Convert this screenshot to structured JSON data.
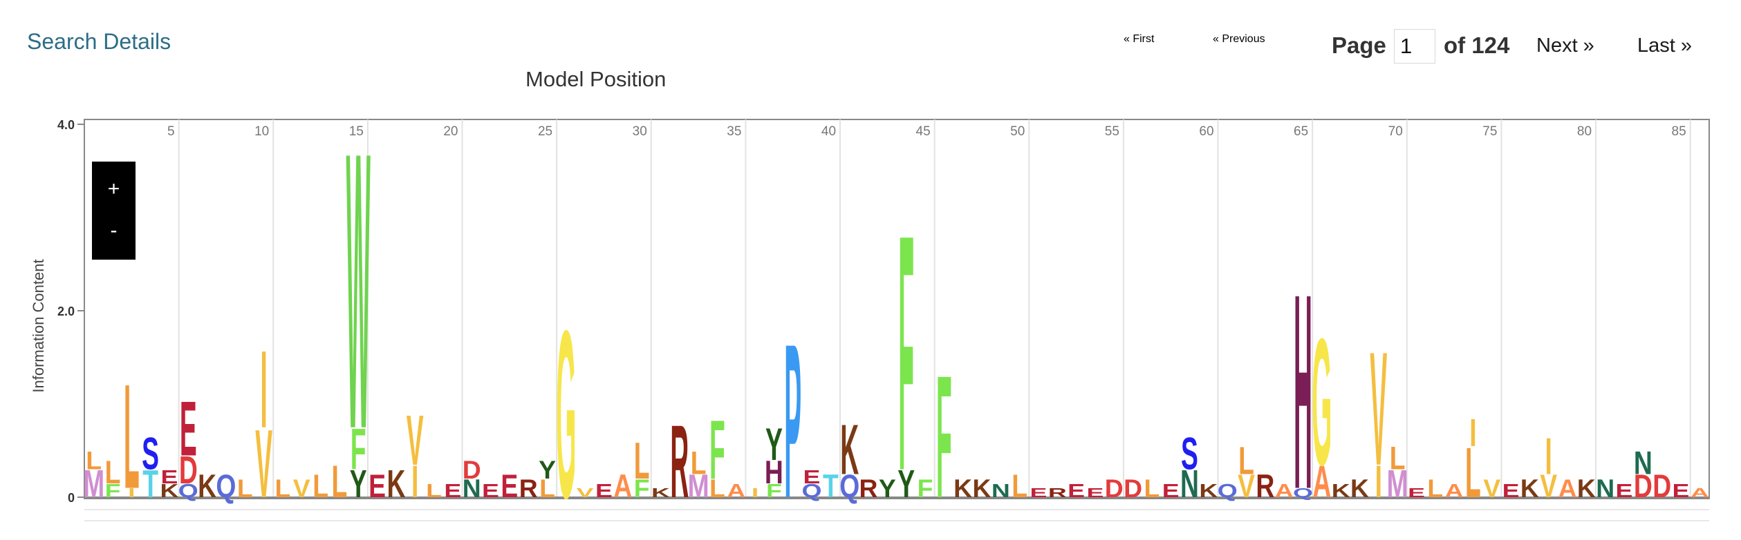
{
  "header": {
    "search_details": "Search Details",
    "pager": {
      "first": "« First",
      "previous": "« Previous",
      "page_label": "Page",
      "page_value": "1",
      "of_label": "of 124",
      "next": "Next »",
      "last": "Last »"
    }
  },
  "zoom": {
    "plus": "+",
    "minus": "-"
  },
  "colors": {
    "axis": "#888888",
    "grid": "#e2e2e2",
    "link": "#2c6d86"
  },
  "chart_data": {
    "type": "bar",
    "title": "Model Position",
    "ylabel": "Information Content",
    "ylim": [
      0,
      4
    ],
    "yticks": [
      "0",
      "2.0",
      "4.0"
    ],
    "xlim": [
      1,
      86
    ],
    "xticks": [
      5,
      10,
      15,
      20,
      25,
      30,
      35,
      40,
      45,
      50,
      55,
      60,
      65,
      70,
      75,
      80,
      85
    ],
    "letter_colors": {
      "A": "#ff8c4a",
      "C": "#f5a7c5",
      "D": "#e33b3b",
      "E": "#c1203a",
      "F": "#7ce54d",
      "G": "#f7e64a",
      "H": "#7a1e55",
      "I": "#f3be3f",
      "K": "#7a3a15",
      "L": "#f19a3a",
      "M": "#d08ed1",
      "N": "#1e6b50",
      "P": "#3a99f2",
      "Q": "#5a6bd8",
      "R": "#8b2212",
      "S": "#1f1ff1",
      "T": "#58d3e8",
      "V": "#f4be3e",
      "W": "#6fd34f",
      "Y": "#1f5a16"
    },
    "columns": [
      {
        "x": 1,
        "stack": [
          [
            "M",
            0.3
          ],
          [
            "L",
            0.2
          ]
        ]
      },
      {
        "x": 2,
        "stack": [
          [
            "F",
            0.15
          ],
          [
            "L",
            0.25
          ]
        ]
      },
      {
        "x": 3,
        "stack": [
          [
            "I",
            0.1
          ],
          [
            "L",
            1.15
          ]
        ]
      },
      {
        "x": 4,
        "stack": [
          [
            "T",
            0.3
          ],
          [
            "S",
            0.35
          ]
        ]
      },
      {
        "x": 5,
        "stack": [
          [
            "K",
            0.15
          ],
          [
            "E",
            0.15
          ]
        ]
      },
      {
        "x": 6,
        "stack": [
          [
            "Q",
            0.15
          ],
          [
            "D",
            0.3
          ],
          [
            "E",
            0.6
          ]
        ]
      },
      {
        "x": 7,
        "stack": [
          [
            "K",
            0.25
          ]
        ]
      },
      {
        "x": 8,
        "stack": [
          [
            "Q",
            0.25
          ]
        ]
      },
      {
        "x": 9,
        "stack": [
          [
            "L",
            0.2
          ]
        ]
      },
      {
        "x": 10,
        "stack": [
          [
            "V",
            0.75
          ],
          [
            "I",
            0.85
          ]
        ]
      },
      {
        "x": 11,
        "stack": [
          [
            "L",
            0.2
          ]
        ]
      },
      {
        "x": 12,
        "stack": [
          [
            "V",
            0.2
          ]
        ]
      },
      {
        "x": 13,
        "stack": [
          [
            "L",
            0.25
          ]
        ]
      },
      {
        "x": 14,
        "stack": [
          [
            "L",
            0.35
          ]
        ]
      },
      {
        "x": 15,
        "stack": [
          [
            "Y",
            0.3
          ],
          [
            "F",
            0.45
          ],
          [
            "W",
            3.05
          ]
        ]
      },
      {
        "x": 16,
        "stack": [
          [
            "E",
            0.25
          ]
        ]
      },
      {
        "x": 17,
        "stack": [
          [
            "K",
            0.3
          ]
        ]
      },
      {
        "x": 18,
        "stack": [
          [
            "I",
            0.35
          ],
          [
            "V",
            0.55
          ]
        ]
      },
      {
        "x": 19,
        "stack": [
          [
            "L",
            0.15
          ]
        ]
      },
      {
        "x": 20,
        "stack": [
          [
            "E",
            0.15
          ]
        ]
      },
      {
        "x": 21,
        "stack": [
          [
            "N",
            0.2
          ],
          [
            "D",
            0.2
          ]
        ]
      },
      {
        "x": 22,
        "stack": [
          [
            "E",
            0.15
          ]
        ]
      },
      {
        "x": 23,
        "stack": [
          [
            "E",
            0.25
          ]
        ]
      },
      {
        "x": 24,
        "stack": [
          [
            "R",
            0.2
          ]
        ]
      },
      {
        "x": 25,
        "stack": [
          [
            "L",
            0.2
          ],
          [
            "Y",
            0.2
          ]
        ]
      },
      {
        "x": 26,
        "stack": [
          [
            "G",
            1.85
          ]
        ]
      },
      {
        "x": 27,
        "stack": [
          [
            "V",
            0.1
          ]
        ]
      },
      {
        "x": 28,
        "stack": [
          [
            "E",
            0.15
          ]
        ]
      },
      {
        "x": 29,
        "stack": [
          [
            "A",
            0.25
          ]
        ]
      },
      {
        "x": 30,
        "stack": [
          [
            "F",
            0.2
          ],
          [
            "L",
            0.4
          ]
        ]
      },
      {
        "x": 31,
        "stack": [
          [
            "K",
            0.1
          ]
        ]
      },
      {
        "x": 32,
        "stack": [
          [
            "R",
            0.8
          ]
        ]
      },
      {
        "x": 33,
        "stack": [
          [
            "M",
            0.25
          ],
          [
            "L",
            0.25
          ]
        ]
      },
      {
        "x": 34,
        "stack": [
          [
            "L",
            0.2
          ],
          [
            "F",
            0.65
          ]
        ]
      },
      {
        "x": 35,
        "stack": [
          [
            "A",
            0.15
          ]
        ]
      },
      {
        "x": 36,
        "stack": [
          [
            "I",
            0.1
          ]
        ]
      },
      {
        "x": 37,
        "stack": [
          [
            "F",
            0.15
          ],
          [
            "H",
            0.25
          ],
          [
            "Y",
            0.35
          ]
        ]
      },
      {
        "x": 38,
        "stack": [
          [
            "P",
            1.7
          ]
        ]
      },
      {
        "x": 39,
        "stack": [
          [
            "Q",
            0.15
          ],
          [
            "E",
            0.15
          ]
        ]
      },
      {
        "x": 40,
        "stack": [
          [
            "T",
            0.25
          ]
        ]
      },
      {
        "x": 41,
        "stack": [
          [
            "Q",
            0.25
          ],
          [
            "K",
            0.55
          ]
        ]
      },
      {
        "x": 42,
        "stack": [
          [
            "R",
            0.2
          ]
        ]
      },
      {
        "x": 43,
        "stack": [
          [
            "Y",
            0.2
          ]
        ]
      },
      {
        "x": 44,
        "stack": [
          [
            "Y",
            0.3
          ],
          [
            "F",
            2.6
          ]
        ]
      },
      {
        "x": 45,
        "stack": [
          [
            "F",
            0.2
          ]
        ]
      },
      {
        "x": 46,
        "stack": [
          [
            "F",
            1.35
          ]
        ]
      },
      {
        "x": 47,
        "stack": [
          [
            "K",
            0.2
          ]
        ]
      },
      {
        "x": 48,
        "stack": [
          [
            "K",
            0.2
          ]
        ]
      },
      {
        "x": 49,
        "stack": [
          [
            "N",
            0.15
          ]
        ]
      },
      {
        "x": 50,
        "stack": [
          [
            "L",
            0.25
          ]
        ]
      },
      {
        "x": 51,
        "stack": [
          [
            "E",
            0.1
          ]
        ]
      },
      {
        "x": 52,
        "stack": [
          [
            "R",
            0.1
          ]
        ]
      },
      {
        "x": 53,
        "stack": [
          [
            "E",
            0.15
          ]
        ]
      },
      {
        "x": 54,
        "stack": [
          [
            "E",
            0.1
          ]
        ]
      },
      {
        "x": 55,
        "stack": [
          [
            "D",
            0.2
          ]
        ]
      },
      {
        "x": 56,
        "stack": [
          [
            "D",
            0.2
          ]
        ]
      },
      {
        "x": 57,
        "stack": [
          [
            "L",
            0.2
          ]
        ]
      },
      {
        "x": 58,
        "stack": [
          [
            "E",
            0.15
          ]
        ]
      },
      {
        "x": 59,
        "stack": [
          [
            "N",
            0.3
          ],
          [
            "S",
            0.35
          ]
        ]
      },
      {
        "x": 60,
        "stack": [
          [
            "K",
            0.15
          ]
        ]
      },
      {
        "x": 61,
        "stack": [
          [
            "Q",
            0.15
          ]
        ]
      },
      {
        "x": 62,
        "stack": [
          [
            "V",
            0.25
          ],
          [
            "L",
            0.3
          ]
        ]
      },
      {
        "x": 63,
        "stack": [
          [
            "R",
            0.25
          ]
        ]
      },
      {
        "x": 64,
        "stack": [
          [
            "A",
            0.15
          ]
        ]
      },
      {
        "x": 65,
        "stack": [
          [
            "Q",
            0.1
          ],
          [
            "H",
            2.15
          ]
        ]
      },
      {
        "x": 66,
        "stack": [
          [
            "A",
            0.35
          ],
          [
            "G",
            1.4
          ]
        ]
      },
      {
        "x": 67,
        "stack": [
          [
            "K",
            0.15
          ]
        ]
      },
      {
        "x": 68,
        "stack": [
          [
            "K",
            0.2
          ]
        ]
      },
      {
        "x": 69,
        "stack": [
          [
            "I",
            0.35
          ],
          [
            "V",
            1.25
          ]
        ]
      },
      {
        "x": 70,
        "stack": [
          [
            "M",
            0.3
          ],
          [
            "L",
            0.25
          ]
        ]
      },
      {
        "x": 71,
        "stack": [
          [
            "E",
            0.1
          ]
        ]
      },
      {
        "x": 72,
        "stack": [
          [
            "L",
            0.2
          ]
        ]
      },
      {
        "x": 73,
        "stack": [
          [
            "A",
            0.15
          ]
        ]
      },
      {
        "x": 74,
        "stack": [
          [
            "L",
            0.55
          ],
          [
            "I",
            0.3
          ]
        ]
      },
      {
        "x": 75,
        "stack": [
          [
            "V",
            0.2
          ]
        ]
      },
      {
        "x": 76,
        "stack": [
          [
            "E",
            0.15
          ]
        ]
      },
      {
        "x": 77,
        "stack": [
          [
            "K",
            0.2
          ]
        ]
      },
      {
        "x": 78,
        "stack": [
          [
            "V",
            0.25
          ],
          [
            "I",
            0.4
          ]
        ]
      },
      {
        "x": 79,
        "stack": [
          [
            "A",
            0.2
          ]
        ]
      },
      {
        "x": 80,
        "stack": [
          [
            "K",
            0.2
          ]
        ]
      },
      {
        "x": 81,
        "stack": [
          [
            "N",
            0.2
          ]
        ]
      },
      {
        "x": 82,
        "stack": [
          [
            "E",
            0.15
          ]
        ]
      },
      {
        "x": 83,
        "stack": [
          [
            "D",
            0.25
          ],
          [
            "N",
            0.25
          ]
        ]
      },
      {
        "x": 84,
        "stack": [
          [
            "D",
            0.25
          ]
        ]
      },
      {
        "x": 85,
        "stack": [
          [
            "E",
            0.15
          ]
        ]
      },
      {
        "x": 86,
        "stack": [
          [
            "A",
            0.1
          ]
        ]
      }
    ]
  }
}
